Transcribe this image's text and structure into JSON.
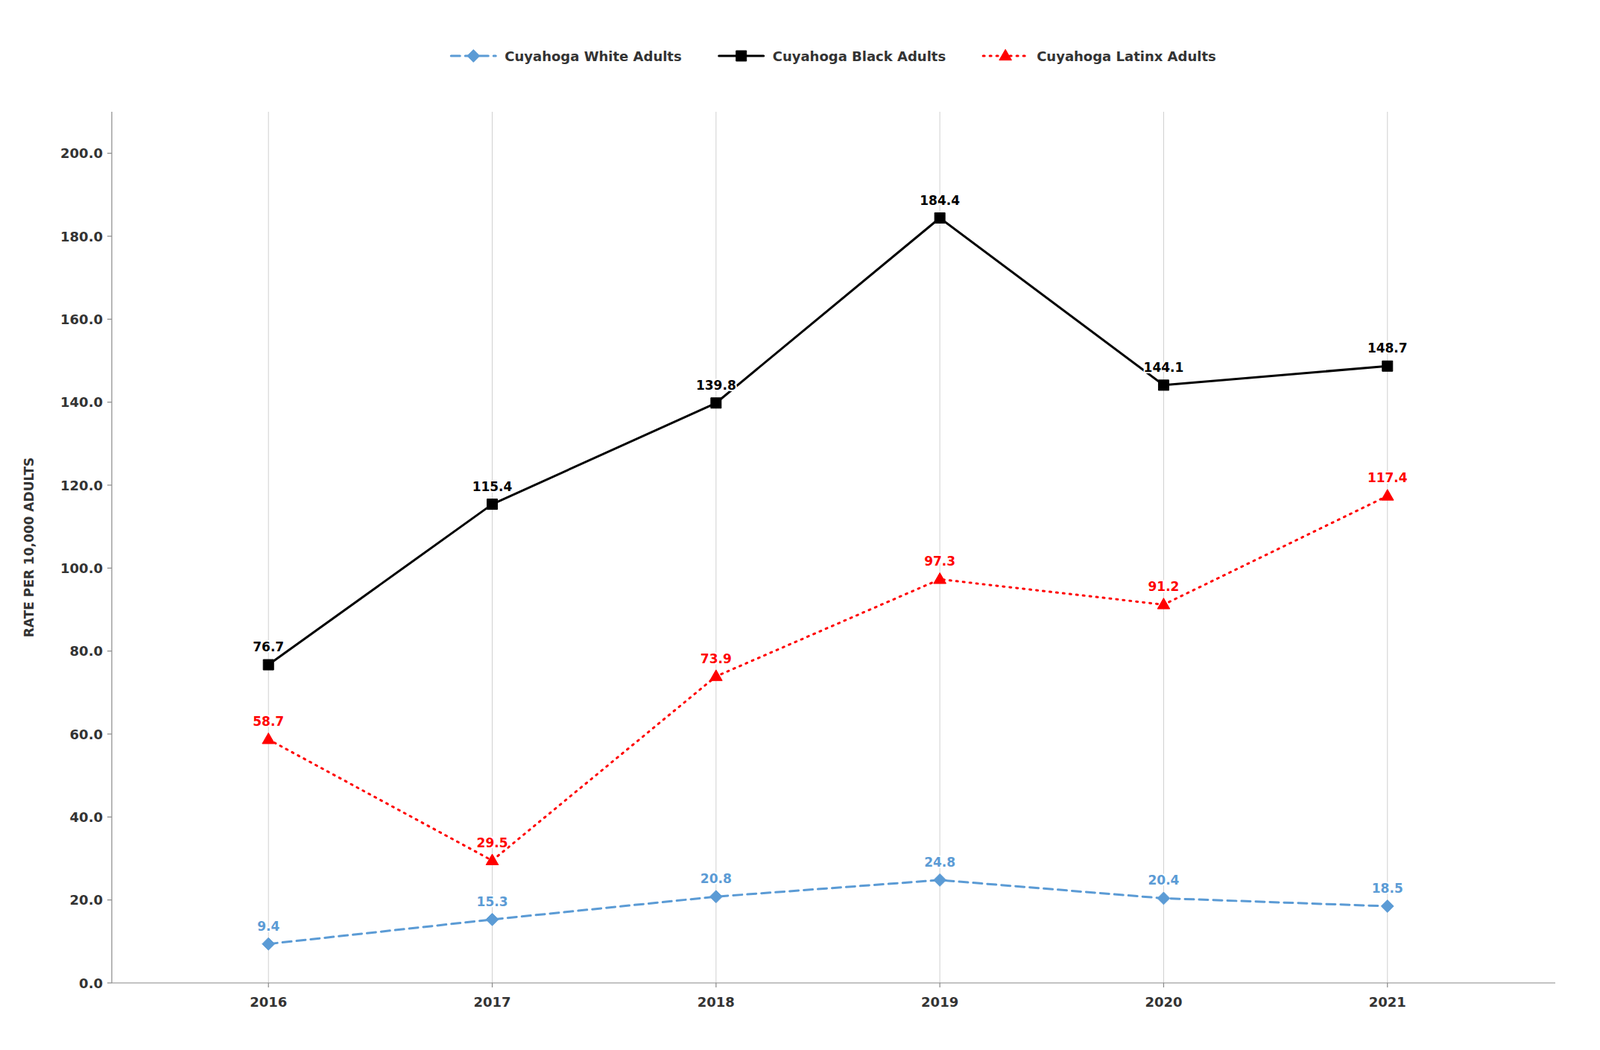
{
  "chart_data": {
    "type": "line",
    "x": [
      2016,
      2017,
      2018,
      2019,
      2020,
      2021
    ],
    "xlim": [
      2015.3,
      2021.75
    ],
    "xticks": [
      2016,
      2017,
      2018,
      2019,
      2020,
      2021
    ],
    "ylim": [
      0,
      210
    ],
    "yticks": [
      {
        "value": 0,
        "label": "0.0"
      },
      {
        "value": 20,
        "label": "20.0"
      },
      {
        "value": 40,
        "label": "40.0"
      },
      {
        "value": 60,
        "label": "60.0"
      },
      {
        "value": 80,
        "label": "80.0"
      },
      {
        "value": 100,
        "label": "100.0"
      },
      {
        "value": 120,
        "label": "120.0"
      },
      {
        "value": 140,
        "label": "140.0"
      },
      {
        "value": 160,
        "label": "160.0"
      },
      {
        "value": 180,
        "label": "180.0"
      },
      {
        "value": 200,
        "label": "200.0"
      }
    ],
    "y_label": "RATE PER 10,000 ADULTS",
    "grid": "x",
    "legend": "top",
    "data_labels": true,
    "series": [
      {
        "name": "Cuyahoga White Adults",
        "color": "#5B9BD5",
        "marker": "diamond",
        "line_style": "dashed",
        "values": [
          9.4,
          15.3,
          20.8,
          24.8,
          20.4,
          18.5
        ]
      },
      {
        "name": "Cuyahoga Black Adults",
        "color": "#000000",
        "marker": "square",
        "line_style": "solid",
        "values": [
          76.7,
          115.4,
          139.8,
          184.4,
          144.1,
          148.7
        ]
      },
      {
        "name": "Cuyahoga Latinx Adults",
        "color": "#FF0000",
        "marker": "triangle",
        "line_style": "dotted",
        "values": [
          58.7,
          29.5,
          73.9,
          97.3,
          91.2,
          117.4
        ]
      }
    ]
  }
}
